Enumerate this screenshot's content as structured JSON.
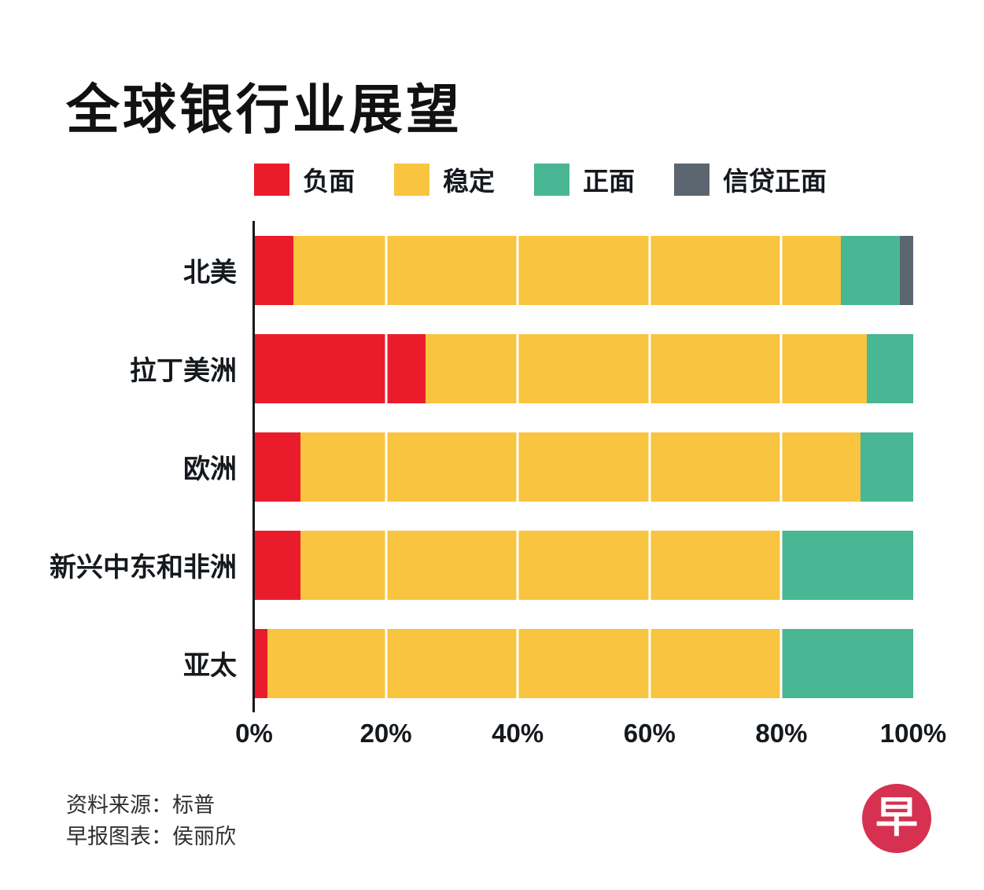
{
  "title": "全球银行业展望",
  "legend": [
    {
      "label": "负面",
      "color": "#ea1c2c"
    },
    {
      "label": "稳定",
      "color": "#f9c440"
    },
    {
      "label": "正面",
      "color": "#49b694"
    },
    {
      "label": "信贷正面",
      "color": "#5c6670"
    }
  ],
  "chart_data": {
    "type": "bar",
    "orientation": "horizontal",
    "stacked": true,
    "title": "全球银行业展望",
    "categories": [
      "北美",
      "拉丁美洲",
      "欧洲",
      "新兴中东和非洲",
      "亚太"
    ],
    "series": [
      {
        "name": "负面",
        "color": "#ea1c2c",
        "values": [
          6,
          26,
          7,
          7,
          2
        ]
      },
      {
        "name": "稳定",
        "color": "#f9c440",
        "values": [
          83,
          67,
          85,
          73,
          78
        ]
      },
      {
        "name": "正面",
        "color": "#49b694",
        "values": [
          9,
          7,
          8,
          20,
          20
        ]
      },
      {
        "name": "信贷正面",
        "color": "#5c6670",
        "values": [
          2,
          0,
          0,
          0,
          0
        ]
      }
    ],
    "xlabel": "",
    "ylabel": "",
    "xlim": [
      0,
      100
    ],
    "x_ticks": [
      "0%",
      "20%",
      "40%",
      "60%",
      "80%",
      "100%"
    ],
    "grid": true,
    "legend_position": "top"
  },
  "source": {
    "line1": "资料来源：标普",
    "line2": "早报图表：侯丽欣"
  },
  "logo": {
    "text": "早",
    "color": "#d63150"
  }
}
